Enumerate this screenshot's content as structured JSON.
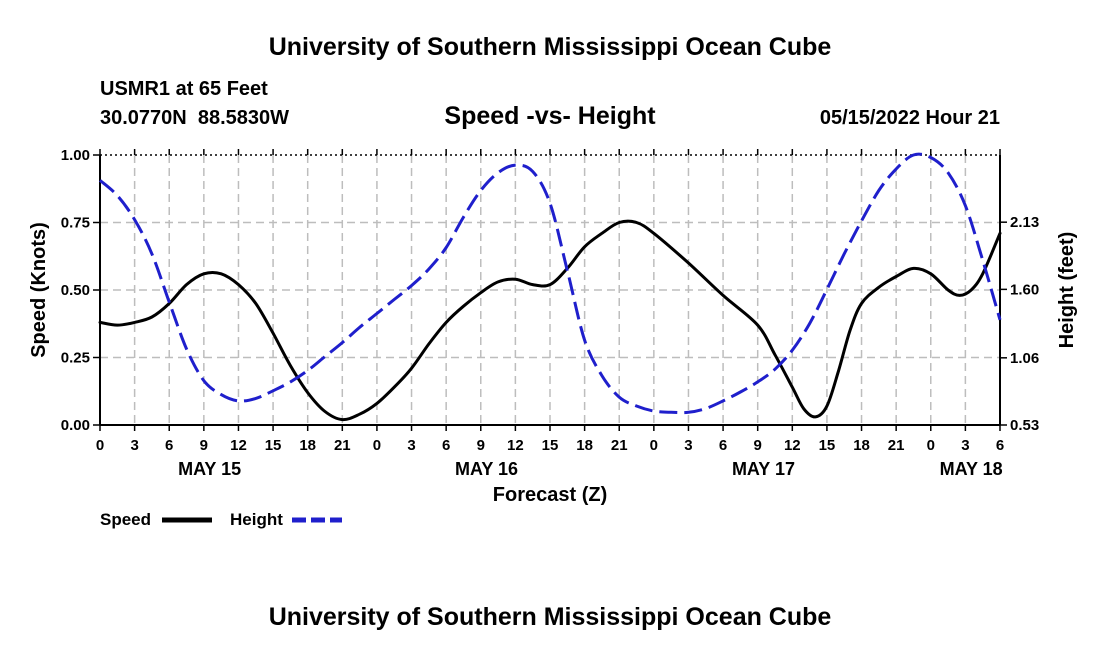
{
  "header": {
    "title": "University of Southern Mississippi Ocean Cube",
    "station": "USMR1 at 65 Feet",
    "location": "30.0770N  88.5830W",
    "date": "05/15/2022 Hour 21"
  },
  "footer": {
    "title": "University of Southern Mississippi Ocean Cube"
  },
  "chart_data": {
    "type": "line",
    "title": "Speed -vs- Height",
    "xlabel": "Forecast (Z)",
    "ylabel_left": "Speed (Knots)",
    "ylabel_right": "Height (feet)",
    "x_unit": "hours from May 15 00Z",
    "xlim": [
      0,
      78
    ],
    "ylim_left": [
      0,
      1.0
    ],
    "ylim_right": [
      0.53,
      2.66
    ],
    "left_ticks": [
      {
        "value": 0,
        "label": "0.00"
      },
      {
        "value": 0.25,
        "label": "0.25"
      },
      {
        "value": 0.5,
        "label": "0.50"
      },
      {
        "value": 0.75,
        "label": "0.75"
      },
      {
        "value": 1.0,
        "label": "1.00"
      }
    ],
    "right_ticks": [
      {
        "value": 0.53,
        "label": "0.53"
      },
      {
        "value": 1.06,
        "label": "1.06"
      },
      {
        "value": 1.6,
        "label": "1.60"
      },
      {
        "value": 2.13,
        "label": "2.13"
      }
    ],
    "x_ticks": [
      {
        "value": 0,
        "label": "0"
      },
      {
        "value": 3,
        "label": "3"
      },
      {
        "value": 6,
        "label": "6"
      },
      {
        "value": 9,
        "label": "9"
      },
      {
        "value": 12,
        "label": "12"
      },
      {
        "value": 15,
        "label": "15"
      },
      {
        "value": 18,
        "label": "18"
      },
      {
        "value": 21,
        "label": "21"
      },
      {
        "value": 24,
        "label": "0"
      },
      {
        "value": 27,
        "label": "3"
      },
      {
        "value": 30,
        "label": "6"
      },
      {
        "value": 33,
        "label": "9"
      },
      {
        "value": 36,
        "label": "12"
      },
      {
        "value": 39,
        "label": "15"
      },
      {
        "value": 42,
        "label": "18"
      },
      {
        "value": 45,
        "label": "21"
      },
      {
        "value": 48,
        "label": "0"
      },
      {
        "value": 51,
        "label": "3"
      },
      {
        "value": 54,
        "label": "6"
      },
      {
        "value": 57,
        "label": "9"
      },
      {
        "value": 60,
        "label": "12"
      },
      {
        "value": 63,
        "label": "15"
      },
      {
        "value": 66,
        "label": "18"
      },
      {
        "value": 69,
        "label": "21"
      },
      {
        "value": 72,
        "label": "0"
      },
      {
        "value": 75,
        "label": "3"
      },
      {
        "value": 78,
        "label": "6"
      }
    ],
    "day_labels": [
      {
        "value": 9.5,
        "label": "MAY 15"
      },
      {
        "value": 33.5,
        "label": "MAY 16"
      },
      {
        "value": 57.5,
        "label": "MAY 17"
      },
      {
        "value": 75.5,
        "label": "MAY 18"
      }
    ],
    "grid": true,
    "legend_position": "bottom-left",
    "series": [
      {
        "name": "Speed",
        "axis": "left",
        "color": "#000000",
        "style": "solid",
        "points": [
          [
            0,
            0.38
          ],
          [
            1.5,
            0.37
          ],
          [
            3,
            0.38
          ],
          [
            4.5,
            0.4
          ],
          [
            6,
            0.45
          ],
          [
            7.5,
            0.52
          ],
          [
            9,
            0.56
          ],
          [
            10.5,
            0.56
          ],
          [
            12,
            0.52
          ],
          [
            13.5,
            0.45
          ],
          [
            15,
            0.34
          ],
          [
            16.5,
            0.22
          ],
          [
            18,
            0.12
          ],
          [
            19.5,
            0.05
          ],
          [
            21,
            0.02
          ],
          [
            22.5,
            0.04
          ],
          [
            24,
            0.08
          ],
          [
            25.5,
            0.14
          ],
          [
            27,
            0.21
          ],
          [
            28.5,
            0.3
          ],
          [
            30,
            0.38
          ],
          [
            31.5,
            0.44
          ],
          [
            33,
            0.49
          ],
          [
            34.5,
            0.53
          ],
          [
            36,
            0.54
          ],
          [
            37.5,
            0.52
          ],
          [
            39,
            0.52
          ],
          [
            40.5,
            0.58
          ],
          [
            42,
            0.66
          ],
          [
            43.5,
            0.71
          ],
          [
            45,
            0.75
          ],
          [
            46.5,
            0.75
          ],
          [
            48,
            0.71
          ],
          [
            51,
            0.6
          ],
          [
            54,
            0.48
          ],
          [
            57,
            0.37
          ],
          [
            58.5,
            0.26
          ],
          [
            60,
            0.14
          ],
          [
            61,
            0.06
          ],
          [
            62,
            0.03
          ],
          [
            63,
            0.07
          ],
          [
            64,
            0.2
          ],
          [
            65,
            0.35
          ],
          [
            66,
            0.45
          ],
          [
            67.5,
            0.51
          ],
          [
            69,
            0.55
          ],
          [
            70.5,
            0.58
          ],
          [
            72,
            0.56
          ],
          [
            73.5,
            0.5
          ],
          [
            74.5,
            0.48
          ],
          [
            75.5,
            0.5
          ],
          [
            76.5,
            0.56
          ],
          [
            78,
            0.71
          ]
        ]
      },
      {
        "name": "Height",
        "axis": "right",
        "color": "#1f1fcc",
        "style": "dashed",
        "points": [
          [
            0,
            2.46
          ],
          [
            1.5,
            2.34
          ],
          [
            3,
            2.15
          ],
          [
            4.5,
            1.88
          ],
          [
            6,
            1.5
          ],
          [
            7.5,
            1.13
          ],
          [
            9,
            0.88
          ],
          [
            10.5,
            0.77
          ],
          [
            12,
            0.72
          ],
          [
            13.5,
            0.74
          ],
          [
            15,
            0.8
          ],
          [
            16.5,
            0.87
          ],
          [
            18,
            0.96
          ],
          [
            19.5,
            1.07
          ],
          [
            21,
            1.18
          ],
          [
            22.5,
            1.3
          ],
          [
            24,
            1.41
          ],
          [
            25.5,
            1.52
          ],
          [
            27,
            1.63
          ],
          [
            28.5,
            1.76
          ],
          [
            30,
            1.93
          ],
          [
            31.5,
            2.17
          ],
          [
            33,
            2.38
          ],
          [
            34.5,
            2.52
          ],
          [
            36,
            2.58
          ],
          [
            37.5,
            2.53
          ],
          [
            39,
            2.28
          ],
          [
            40.5,
            1.75
          ],
          [
            42,
            1.2
          ],
          [
            43.5,
            0.92
          ],
          [
            45,
            0.75
          ],
          [
            46.5,
            0.68
          ],
          [
            48,
            0.64
          ],
          [
            49.5,
            0.63
          ],
          [
            51,
            0.63
          ],
          [
            52.5,
            0.66
          ],
          [
            54,
            0.72
          ],
          [
            55.5,
            0.79
          ],
          [
            57,
            0.87
          ],
          [
            58.5,
            0.97
          ],
          [
            60,
            1.12
          ],
          [
            61.5,
            1.33
          ],
          [
            63,
            1.6
          ],
          [
            64.5,
            1.88
          ],
          [
            66,
            2.14
          ],
          [
            67.5,
            2.38
          ],
          [
            69,
            2.55
          ],
          [
            70.5,
            2.66
          ],
          [
            72,
            2.64
          ],
          [
            73.5,
            2.52
          ],
          [
            75,
            2.26
          ],
          [
            76.5,
            1.83
          ],
          [
            78,
            1.36
          ]
        ]
      }
    ]
  }
}
